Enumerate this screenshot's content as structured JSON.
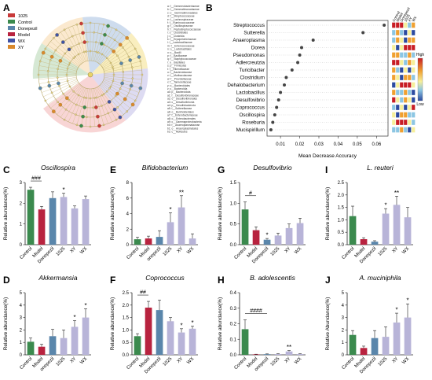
{
  "colors": {
    "g1025": "#c83a3a",
    "control": "#3b8a4e",
    "donepezil": "#5a86ab",
    "model": "#b8233f",
    "wx": "#3f52a6",
    "xy": "#d9892d",
    "bar_lav": "#b8b4d8"
  },
  "panelA": {
    "letter": "A",
    "legend": [
      "1025",
      "Control",
      "Donepezil",
      "Model",
      "WX",
      "XY"
    ],
    "taxa": [
      "a: f__Gemmeobacteriaceae",
      "b: f__Gemmatimonadaceae",
      "c: o__Gemmatimonadales",
      "d: f__Streptococcaceae",
      "e: f__Lachnospiraceae",
      "f: f__Ruminococcaceae",
      "g: f__Oscillospiraceae",
      "h: f__Peptostreptococcaceae",
      "i: o__Clostridiales",
      "j: c__Clostridia",
      "k: f__Erysipelotrichaceae",
      "l: f__Lactobacillaceae",
      "m: f__Enterococcaceae",
      "n: o__Lactobacillales",
      "o: c__Bacilli",
      "p: f__Bacillaceae",
      "q: f__Staphylococcaceae",
      "r: o__Bacillales",
      "s: p__Firmicutes",
      "t: f__Rikenellaceae",
      "u: f__Bacteroidaceae",
      "v: f__Muribaculaceae",
      "w: f__Prevotellaceae",
      "x: f__Tannerellaceae",
      "y: o__Bacteroidales",
      "z: c__Bacteroidia",
      "a0: p__Bacteroidota",
      "a1: f__Desulfovibrionaceae",
      "a2: o__Desulfovibrionales",
      "a3: c__Desulfovibrionia",
      "a4: p__Desulfobacterota",
      "a5: f__Sutterellaceae",
      "a6: o__Burkholderiales",
      "a7: f__Enterobacteriaceae",
      "a8: o__Enterobacterales",
      "a9: c__Gammaproteobacteria",
      "b0: f__Anaeroplasmataceae",
      "b1: o__Anaeroplasmatales",
      "b2: c__Mollicutes"
    ]
  },
  "panelB": {
    "letter": "B",
    "xlabel": "Mean Decrease Accuracy",
    "ticks": [
      "0.01",
      "0.02",
      "0.03",
      "0.04",
      "0.05",
      "0.06"
    ],
    "heat_cols": [
      "Control",
      "Model",
      "Donepezil",
      "1025",
      "XY",
      "WX"
    ],
    "heat_high": "High",
    "heat_low": "Low",
    "chart_data": {
      "type": "scatter",
      "xlim": [
        0.003,
        0.066
      ],
      "items": [
        {
          "name": "Streptococcus",
          "value": 0.064
        },
        {
          "name": "Sutterella",
          "value": 0.053
        },
        {
          "name": "Anaeroplasma",
          "value": 0.027
        },
        {
          "name": "Dorea",
          "value": 0.021
        },
        {
          "name": "Pseudomonas",
          "value": 0.02
        },
        {
          "name": "Adlercreutzia",
          "value": 0.019
        },
        {
          "name": "Turicibacter",
          "value": 0.016
        },
        {
          "name": "Clostridium",
          "value": 0.013
        },
        {
          "name": "Dehalobacterium",
          "value": 0.012
        },
        {
          "name": "Lactobacillus",
          "value": 0.01
        },
        {
          "name": "Desulfovibrio",
          "value": 0.009
        },
        {
          "name": "Coprococcus",
          "value": 0.008
        },
        {
          "name": "Oscillospira",
          "value": 0.007
        },
        {
          "name": "Roseburia",
          "value": 0.006
        },
        {
          "name": "Mucispirillum",
          "value": 0.005
        }
      ]
    }
  },
  "bars": [
    {
      "letter": "C",
      "title": "Oscillospira",
      "ylabel": "Relative abundance(%)",
      "categories": [
        "Control",
        "Model",
        "Donepezil",
        "1025",
        "XY",
        "WX"
      ],
      "values": [
        2.65,
        1.7,
        2.25,
        2.3,
        1.75,
        2.2
      ],
      "errors": [
        0.12,
        0.15,
        0.3,
        0.18,
        0.12,
        0.15
      ],
      "ylim": [
        0,
        3
      ],
      "yticks": [
        "0",
        "1",
        "2",
        "3"
      ],
      "marks": [
        "",
        "",
        "",
        "*",
        "",
        ""
      ],
      "sig": {
        "label": "###",
        "from": 0,
        "to": 1
      }
    },
    {
      "letter": "E",
      "title": "Bifidobacterium",
      "ylabel": "Relative abundance(%)",
      "categories": [
        "Control",
        "Model",
        "onepezil",
        "1025",
        "XY",
        "WX"
      ],
      "values": [
        0.7,
        0.8,
        1.0,
        2.9,
        4.8,
        0.8
      ],
      "errors": [
        0.25,
        0.3,
        0.8,
        1.2,
        1.5,
        0.6
      ],
      "ylim": [
        0,
        8
      ],
      "yticks": [
        "0",
        "2",
        "4",
        "6",
        "8"
      ],
      "marks": [
        "",
        "",
        "",
        "*",
        "**",
        ""
      ],
      "sig": null
    },
    {
      "letter": "G",
      "title": "Desulfovibrio",
      "ylabel": "Relative abundance(%)",
      "categories": [
        "Control",
        "Model",
        "Donepezil",
        "1025",
        "XY",
        "WX"
      ],
      "values": [
        0.85,
        0.35,
        0.12,
        0.22,
        0.4,
        0.52
      ],
      "errors": [
        0.18,
        0.08,
        0.03,
        0.06,
        0.1,
        0.12
      ],
      "ylim": [
        0,
        1.5
      ],
      "yticks": [
        "0.0",
        "0.5",
        "1.0",
        "1.5"
      ],
      "marks": [
        "",
        "",
        "*",
        "",
        "",
        ""
      ],
      "sig": {
        "label": "#",
        "from": 0,
        "to": 1
      }
    },
    {
      "letter": "I",
      "title": "L. reuteri",
      "ylabel": "Relative abundance(%)",
      "categories": [
        "Control",
        "Model",
        "Donepezil",
        "1025",
        "XY",
        "WX"
      ],
      "values": [
        1.15,
        0.22,
        0.12,
        1.25,
        1.6,
        1.1
      ],
      "errors": [
        0.4,
        0.06,
        0.04,
        0.2,
        0.35,
        0.4
      ],
      "ylim": [
        0,
        2.5
      ],
      "yticks": [
        "0.0",
        "0.5",
        "1.0",
        "1.5",
        "2.0",
        "2.5"
      ],
      "marks": [
        "",
        "",
        "",
        "*",
        "**",
        ""
      ],
      "sig": null
    },
    {
      "letter": "D",
      "title": "Akkermansia",
      "ylabel": "Relative abundance(%)",
      "categories": [
        "Control",
        "Model",
        "onepezil",
        "1025",
        "XY",
        "WX"
      ],
      "values": [
        1.05,
        0.65,
        1.5,
        1.35,
        2.25,
        3.0
      ],
      "errors": [
        0.3,
        0.2,
        0.55,
        0.65,
        0.5,
        0.7
      ],
      "ylim": [
        0,
        5
      ],
      "yticks": [
        "0",
        "1",
        "2",
        "3",
        "4",
        "5"
      ],
      "marks": [
        "",
        "",
        "",
        "",
        "*",
        "*"
      ],
      "sig": null
    },
    {
      "letter": "F",
      "title": "Coprococcus",
      "ylabel": "Relative abundance(%)",
      "categories": [
        "Control",
        "Model",
        "Donepezil",
        "1025",
        "XY",
        "WX"
      ],
      "values": [
        0.75,
        1.9,
        1.8,
        1.35,
        0.9,
        1.05
      ],
      "errors": [
        0.1,
        0.25,
        0.4,
        0.15,
        0.15,
        0.1
      ],
      "ylim": [
        0,
        2.5
      ],
      "yticks": [
        "0.0",
        "0.5",
        "1.0",
        "1.5",
        "2.0",
        "2.5"
      ],
      "marks": [
        "",
        "",
        "",
        "",
        "*",
        "*"
      ],
      "sig": {
        "label": "##",
        "from": 0,
        "to": 1
      }
    },
    {
      "letter": "H",
      "title": "B. adolescentis",
      "ylabel": "Relative abundance(%)",
      "categories": [
        "Control",
        "Model",
        "onepezil",
        "1025",
        "XY",
        "WX"
      ],
      "values": [
        0.165,
        0.003,
        0.004,
        0.005,
        0.022,
        0.005
      ],
      "errors": [
        0.06,
        0.001,
        0.002,
        0.002,
        0.005,
        0.002
      ],
      "ylim": [
        0,
        0.4
      ],
      "yticks": [
        "0.0",
        "0.1",
        "0.2",
        "0.3",
        "0.4"
      ],
      "marks": [
        "",
        "",
        "",
        "",
        "**",
        ""
      ],
      "sig": {
        "label": "####",
        "from": 0,
        "to": 2
      }
    },
    {
      "letter": "J",
      "title": "A. muciniphila",
      "ylabel": "Relative Abundance(%)",
      "categories": [
        "Control",
        "Model",
        "Donepezil",
        "1025",
        "XY",
        "WX"
      ],
      "values": [
        1.6,
        0.55,
        1.35,
        1.45,
        2.6,
        3.0
      ],
      "errors": [
        0.35,
        0.15,
        0.6,
        0.8,
        0.75,
        1.1
      ],
      "ylim": [
        0,
        5
      ],
      "yticks": [
        "0",
        "1",
        "2",
        "3",
        "4",
        "5"
      ],
      "marks": [
        "",
        "",
        "",
        "",
        "*",
        "*"
      ],
      "sig": null
    }
  ]
}
